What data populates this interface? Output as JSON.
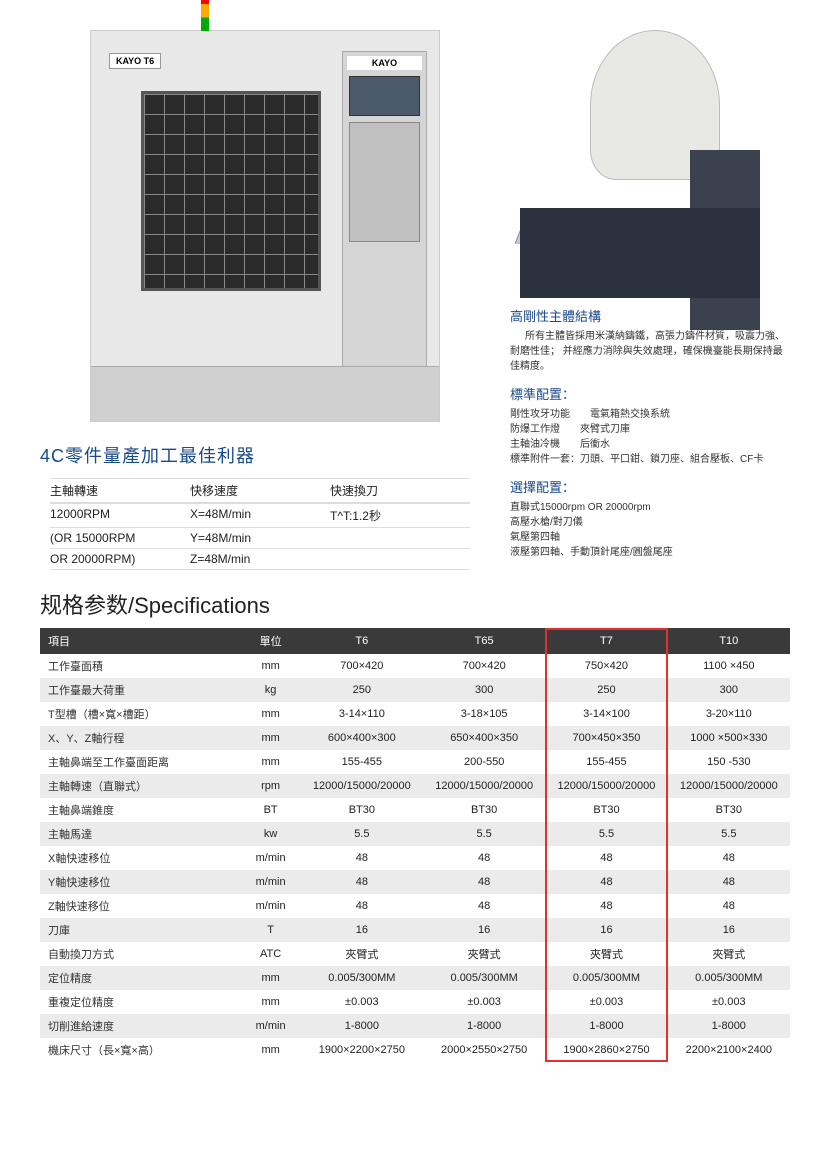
{
  "machine_labels": {
    "kayo_t6": "KAYO  T6",
    "kayo_brand": "KAYO"
  },
  "product_title": "4C零件量產加工最佳利器",
  "quick_specs": {
    "header": [
      "主軸轉速",
      "快移速度",
      "快速換刀"
    ],
    "rows": [
      [
        "12000RPM",
        "X=48M/min",
        "T^T:1.2秒"
      ],
      [
        "(OR 15000RPM",
        "Y=48M/min",
        ""
      ],
      [
        "OR 20000RPM)",
        "Z=48M/min",
        ""
      ]
    ]
  },
  "right_blocks": [
    {
      "title": "高剛性主體結構",
      "body": "所有主體皆採用米漢納鑄鐵，高張力鑄件材質，吸震力強、耐磨性佳；\n并經應力消除與失效處理，確保機臺能長期保持最佳精度。"
    },
    {
      "title": "標準配置：",
      "lines": [
        "剛性攻牙功能　　電氣箱熱交換系統",
        "防爆工作燈　　夾臂式刀庫",
        "主軸油冷機　　后衝水",
        "標準附件一套：刀頭、平口鉗、鎖刀座、組合壓板、CF卡"
      ]
    },
    {
      "title": "選擇配置：",
      "lines": [
        "直聯式15000rpm OR 20000rpm",
        "高壓水槍/對刀儀",
        "氣壓第四軸",
        "液壓第四軸、手動頂針尾座/圓盤尾座"
      ]
    }
  ],
  "spec_heading": "规格参数/Specifications",
  "spec_table": {
    "columns": [
      "項目",
      "單位",
      "T6",
      "T65",
      "T7",
      "T10"
    ],
    "rows": [
      [
        "工作臺面積",
        "mm",
        "700×420",
        "700×420",
        "750×420",
        "1100 ×450"
      ],
      [
        "工作臺最大荷重",
        "kg",
        "250",
        "300",
        "250",
        "300"
      ],
      [
        "T型槽（槽×寬×槽距）",
        "mm",
        "3-14×110",
        "3-18×105",
        "3-14×100",
        "3-20×110"
      ],
      [
        "X、Y、Z軸行程",
        "mm",
        "600×400×300",
        "650×400×350",
        "700×450×350",
        "1000 ×500×330"
      ],
      [
        "主軸鼻端至工作臺面距离",
        "mm",
        "155-455",
        "200-550",
        "155-455",
        "150 -530"
      ],
      [
        "主軸轉速（直聯式）",
        "rpm",
        "12000/15000/20000",
        "12000/15000/20000",
        "12000/15000/20000",
        "12000/15000/20000"
      ],
      [
        "主軸鼻端錐度",
        "BT",
        "BT30",
        "BT30",
        "BT30",
        "BT30"
      ],
      [
        "主軸馬達",
        "kw",
        "5.5",
        "5.5",
        "5.5",
        "5.5"
      ],
      [
        "X軸快速移位",
        "m/min",
        "48",
        "48",
        "48",
        "48"
      ],
      [
        "Y軸快速移位",
        "m/min",
        "48",
        "48",
        "48",
        "48"
      ],
      [
        "Z軸快速移位",
        "m/min",
        "48",
        "48",
        "48",
        "48"
      ],
      [
        "刀庫",
        "T",
        "16",
        "16",
        "16",
        "16"
      ],
      [
        "自動換刀方式",
        "ATC",
        "夾臂式",
        "夾臂式",
        "夾臂式",
        "夾臂式"
      ],
      [
        "定位精度",
        "mm",
        "0.005/300MM",
        "0.005/300MM",
        "0.005/300MM",
        "0.005/300MM"
      ],
      [
        "重複定位精度",
        "mm",
        "±0.003",
        "±0.003",
        "±0.003",
        "±0.003"
      ],
      [
        "切削進給速度",
        "m/min",
        "1-8000",
        "1-8000",
        "1-8000",
        "1-8000"
      ],
      [
        "機床尺寸（長×寬×高）",
        "mm",
        "1900×2200×2750",
        "2000×2550×2750",
        "1900×2860×2750",
        "2200×2100×2400"
      ]
    ],
    "highlight_col_index": 4,
    "highlight_color": "#e03030"
  },
  "colors": {
    "heading_blue": "#1a4a8a",
    "table_header_bg": "#3a3a3a",
    "table_stripe": "#ebebeb",
    "highlight": "#e03030"
  }
}
